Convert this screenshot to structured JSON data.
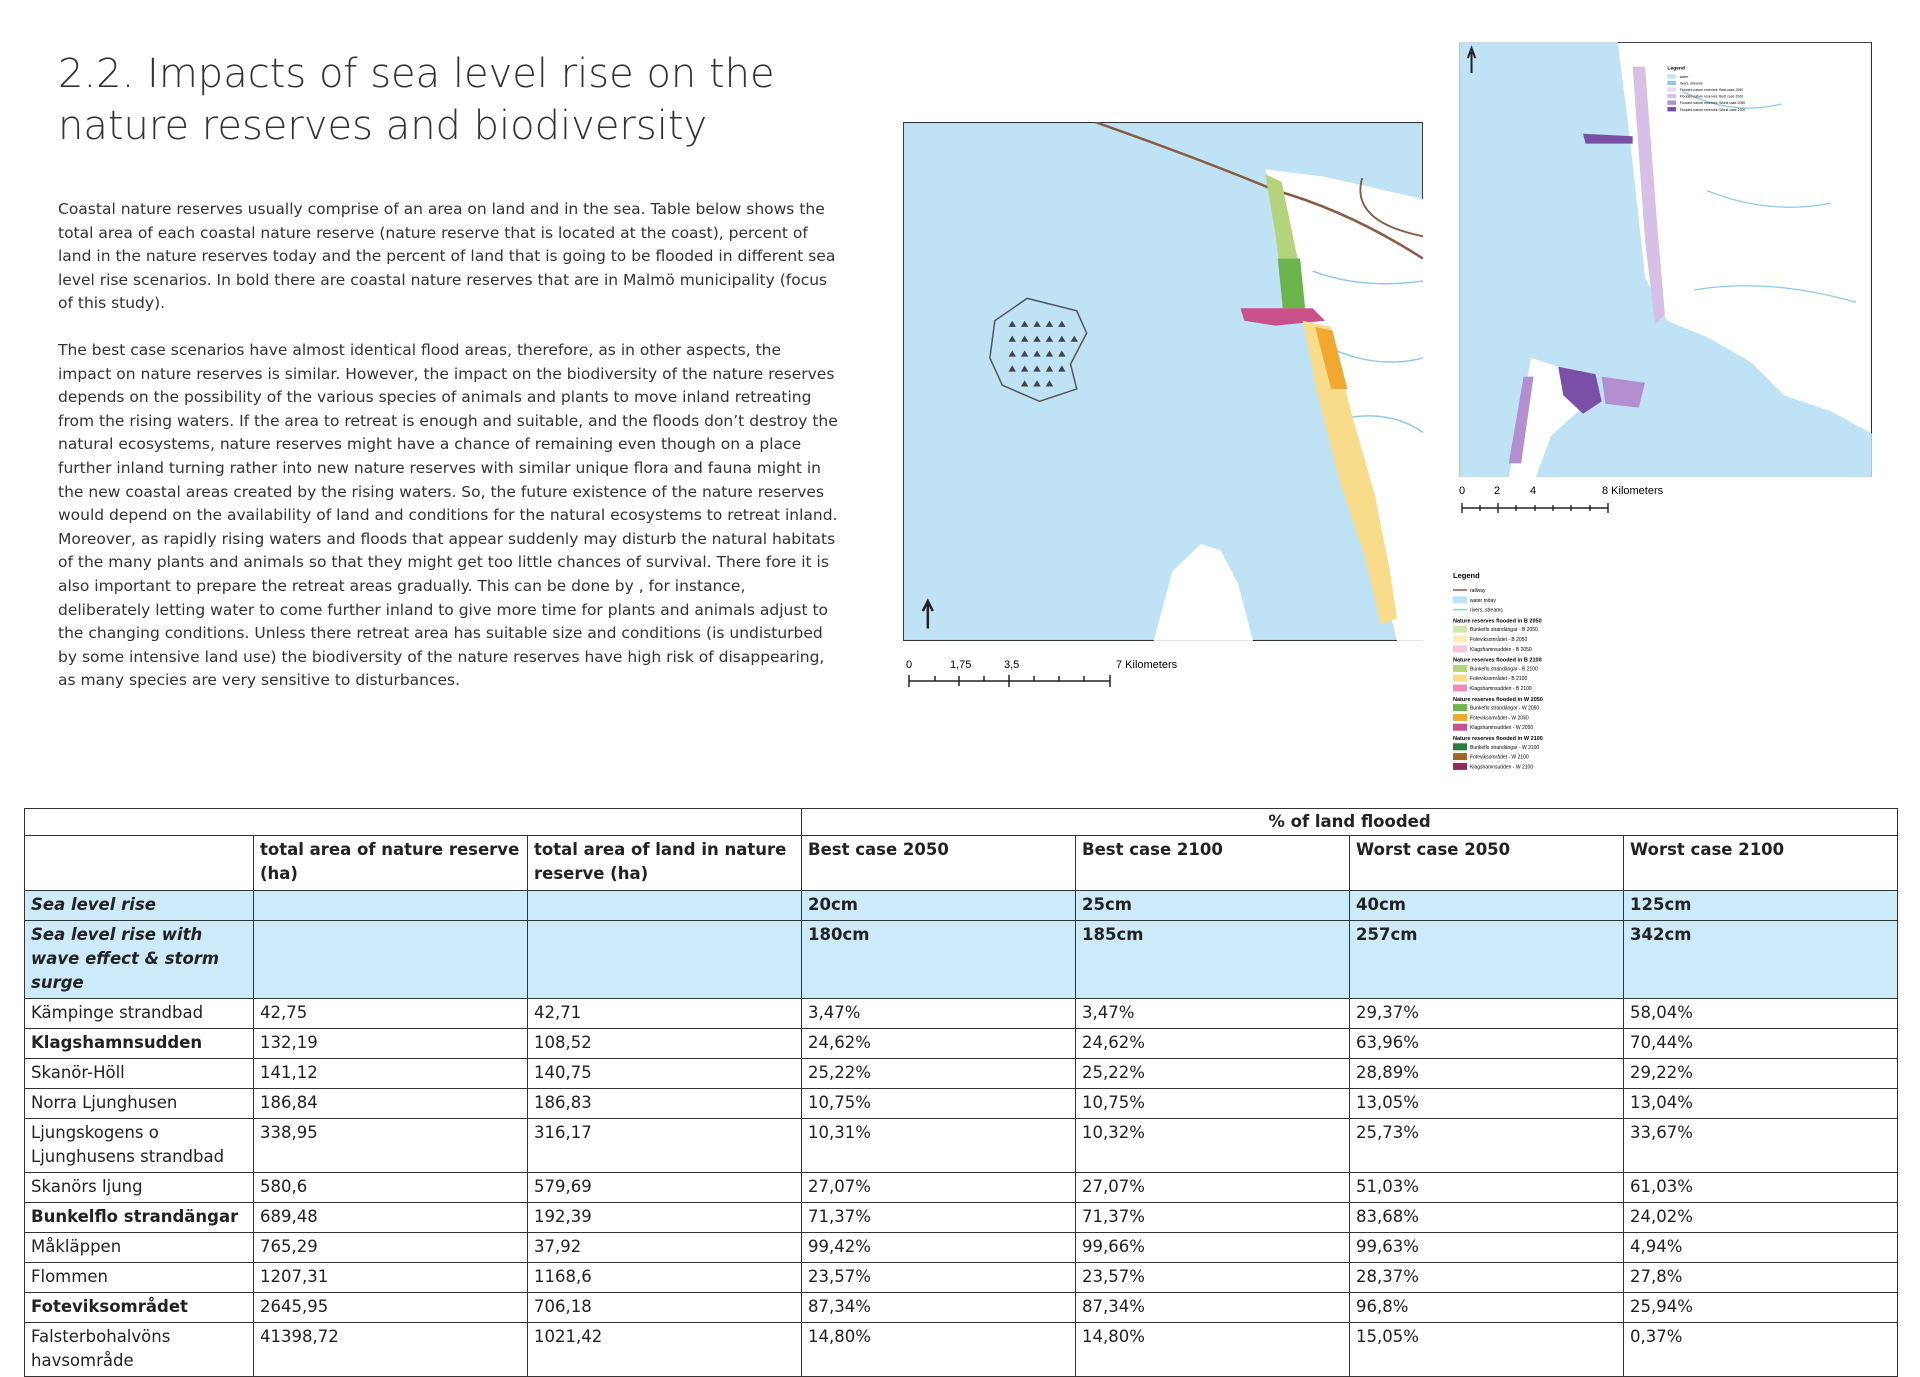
{
  "header": {
    "title": "2.2. Impacts of sea level rise on the nature reserves and biodiversity"
  },
  "paragraphs": [
    "Coastal nature reserves usually comprise of an area on land and in the sea. Table below shows the total area of each coastal nature reserve (nature reserve that is located at the coast), percent of land in the nature reserves today and the percent of land that is going to be flooded in different sea level rise scenarios. In bold there are coastal nature reserves that are in Malmö municipality (focus of this study).",
    "The best case scenarios have almost identical flood areas, therefore, as in other aspects, the impact on nature reserves is similar. However, the impact on the biodiversity of the nature reserves depends on the possibility of the various species of animals and plants to move inland retreating from the rising waters. If the area to retreat is enough and suitable, and the floods don’t destroy the natural ecosystems, nature reserves might have a chance of remaining even though on a place further inland turning rather into new nature reserves with similar unique flora and fauna might in the new coastal areas created by the rising waters. So, the future existence of the nature reserves would depend on the availability of land and conditions for the natural ecosystems to retreat inland. Moreover, as rapidly rising waters and floods that appear suddenly may disturb the natural habitats of the many plants and animals so that they might get too little chances of survival. There fore it is also important to prepare the retreat areas gradually. This can be done by , for instance, deliberately letting water to come further inland to give more time for plants and animals adjust to the changing conditions. Unless there retreat area has suitable size and conditions (is undisturbed by some intensive land use) the biodiversity of the nature reserves have high risk of disappearing, as many species are very sensitive to disturbances."
  ],
  "map_main": {
    "scale_labels": [
      "0",
      "1,75",
      "3,5",
      "7 Kilometers"
    ]
  },
  "map_overview": {
    "scale_labels": [
      "0",
      "2",
      "4",
      "8 Kilometers"
    ],
    "legend": {
      "title": "Legend",
      "items": [
        {
          "label": "water",
          "color": "#bfe3f5"
        },
        {
          "label": "rivers, streams",
          "color": "#8fc8e8"
        },
        {
          "label": "Flooded nature reserves: Best case 2050",
          "color": "#e6d8ee"
        },
        {
          "label": "Flooded nature reserves: Best case 2100",
          "color": "#d6c0e6"
        },
        {
          "label": "Flooded nature reserves: Worst case 2050",
          "color": "#b48fd0"
        },
        {
          "label": "Flooded nature reserves: Worst case 2100",
          "color": "#7a4fa8"
        }
      ]
    }
  },
  "legend_main": {
    "title": "Legend",
    "items": [
      {
        "label": "railway",
        "color": "#8a5a44",
        "kind": "line"
      },
      {
        "label": "water today",
        "color": "#bfe3f5"
      },
      {
        "label": "rivers, streams",
        "color": "#8fc8e8",
        "kind": "line"
      },
      {
        "label": "Nature reserves flooded in B 2050",
        "kind": "heading"
      },
      {
        "label": "Bunkeflo strandängar - B 2050",
        "color": "#d4e6b0"
      },
      {
        "label": "Foteviksområdet - B 2050",
        "color": "#fbeebb"
      },
      {
        "label": "Klagshamnsudden - B 2050",
        "color": "#f6c6dc"
      },
      {
        "label": "Nature reserves flooded in B 2100",
        "kind": "heading"
      },
      {
        "label": "Bunkeflo strandängar - B 2100",
        "color": "#b4d47c"
      },
      {
        "label": "Foteviksområdet - B 2100",
        "color": "#f8dc8c"
      },
      {
        "label": "Klagshamnsudden - B 2100",
        "color": "#ec8cbc"
      },
      {
        "label": "Nature reserves flooded in W 2050",
        "kind": "heading"
      },
      {
        "label": "Bunkeflo strandängar - W 2050",
        "color": "#6cb44c"
      },
      {
        "label": "Foteviksområdet - W 2050",
        "color": "#f0a830"
      },
      {
        "label": "Klagshamnsudden - W 2050",
        "color": "#c8508c"
      },
      {
        "label": "Nature reserves flooded in W 2100",
        "kind": "heading"
      },
      {
        "label": "Bunkeflo strandängar - W 2100",
        "color": "#2c7c3c"
      },
      {
        "label": "Foteviksområdet - W 2100",
        "color": "#a0642c"
      },
      {
        "label": "Klagshamnsudden - W 2100",
        "color": "#8c2c5c"
      }
    ]
  },
  "table": {
    "group_header": "% of land flooded",
    "columns": [
      "total area of nature reserve (ha)",
      "total area of land in nature reserve (ha)",
      "Best case 2050",
      "Best case 2100",
      "Worst case 2050",
      "Worst case 2100"
    ],
    "scenario_rows": [
      {
        "label": "Sea level rise",
        "values": [
          "20cm",
          "25cm",
          "40cm",
          "125cm"
        ]
      },
      {
        "label": "Sea level rise with wave effect & storm surge",
        "values": [
          "180cm",
          "185cm",
          "257cm",
          "342cm"
        ]
      }
    ],
    "rows": [
      {
        "name": "Kämpinge strandbad",
        "bold": false,
        "cells": [
          "42,75",
          "42,71",
          "3,47%",
          "3,47%",
          "29,37%",
          "58,04%"
        ]
      },
      {
        "name": "Klagshamnsudden",
        "bold": true,
        "cells": [
          "132,19",
          "108,52",
          "24,62%",
          "24,62%",
          "63,96%",
          "70,44%"
        ]
      },
      {
        "name": "Skanör-Höll",
        "bold": false,
        "cells": [
          "141,12",
          "140,75",
          "25,22%",
          "25,22%",
          "28,89%",
          "29,22%"
        ]
      },
      {
        "name": "Norra Ljunghusen",
        "bold": false,
        "cells": [
          "186,84",
          "186,83",
          "10,75%",
          "10,75%",
          "13,05%",
          "13,04%"
        ]
      },
      {
        "name": "Ljungskogens o Ljunghusens strandbad",
        "bold": false,
        "cells": [
          "338,95",
          "316,17",
          "10,31%",
          "10,32%",
          "25,73%",
          "33,67%"
        ]
      },
      {
        "name": "Skanörs ljung",
        "bold": false,
        "cells": [
          "580,6",
          "579,69",
          "27,07%",
          "27,07%",
          "51,03%",
          "61,03%"
        ]
      },
      {
        "name": "Bunkelflo strandängar",
        "bold": true,
        "cells": [
          "689,48",
          "192,39",
          "71,37%",
          "71,37%",
          "83,68%",
          "24,02%"
        ]
      },
      {
        "name": "Måkläppen",
        "bold": false,
        "cells": [
          "765,29",
          "37,92",
          "99,42%",
          "99,66%",
          "99,63%",
          "4,94%"
        ]
      },
      {
        "name": "Flommen",
        "bold": false,
        "cells": [
          "1207,31",
          "1168,6",
          "23,57%",
          "23,57%",
          "28,37%",
          "27,8%"
        ]
      },
      {
        "name": "Foteviksområdet",
        "bold": true,
        "cells": [
          "2645,95",
          "706,18",
          "87,34%",
          "87,34%",
          "96,8%",
          "25,94%"
        ]
      },
      {
        "name": "Falsterbohalvöns havsområde",
        "bold": false,
        "cells": [
          "41398,72",
          "1021,42",
          "14,80%",
          "14,80%",
          "15,05%",
          "0,37%"
        ]
      }
    ]
  }
}
